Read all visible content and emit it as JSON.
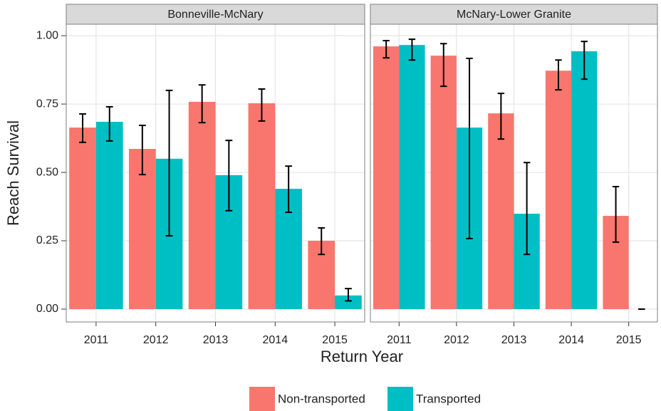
{
  "chart_data": {
    "type": "bar",
    "ylabel": "Reach Survival",
    "xlabel": "Return Year",
    "ylim": [
      -0.047,
      1.042
    ],
    "yticks": [
      {
        "value": 0,
        "label": "0.00"
      },
      {
        "value": 0.25,
        "label": "0.25"
      },
      {
        "value": 0.5,
        "label": "0.50"
      },
      {
        "value": 0.75,
        "label": "0.75"
      },
      {
        "value": 1,
        "label": "1.00"
      }
    ],
    "grid": true,
    "legend": "bottom",
    "series": [
      {
        "name": "Non-transported",
        "color": "#F8766D"
      },
      {
        "name": "Transported",
        "color": "#00BFC4"
      }
    ],
    "facets": [
      {
        "title": "Bonneville-McNary",
        "categories": [
          "2011",
          "2012",
          "2013",
          "2014",
          "2015"
        ],
        "series": [
          {
            "values": [
              0.664,
              0.586,
              0.758,
              0.753,
              0.25
            ],
            "lower": [
              0.61,
              0.492,
              0.682,
              0.688,
              0.2
            ],
            "upper": [
              0.714,
              0.672,
              0.82,
              0.805,
              0.297
            ]
          },
          {
            "values": [
              0.685,
              0.55,
              0.49,
              0.44,
              0.05
            ],
            "lower": [
              0.615,
              0.268,
              0.36,
              0.354,
              0.03
            ],
            "upper": [
              0.74,
              0.8,
              0.617,
              0.523,
              0.075
            ]
          }
        ]
      },
      {
        "title": "McNary-Lower Granite",
        "categories": [
          "2011",
          "2012",
          "2013",
          "2014",
          "2015"
        ],
        "series": [
          {
            "values": [
              0.961,
              0.927,
              0.716,
              0.872,
              0.341
            ],
            "lower": [
              0.919,
              0.815,
              0.622,
              0.802,
              0.245
            ],
            "upper": [
              0.982,
              0.971,
              0.789,
              0.911,
              0.448
            ]
          },
          {
            "values": [
              0.966,
              0.664,
              0.349,
              0.943,
              0
            ],
            "lower": [
              0.911,
              0.258,
              0.2,
              0.841,
              0
            ],
            "upper": [
              0.987,
              0.917,
              0.536,
              0.979,
              0
            ]
          }
        ]
      }
    ]
  }
}
